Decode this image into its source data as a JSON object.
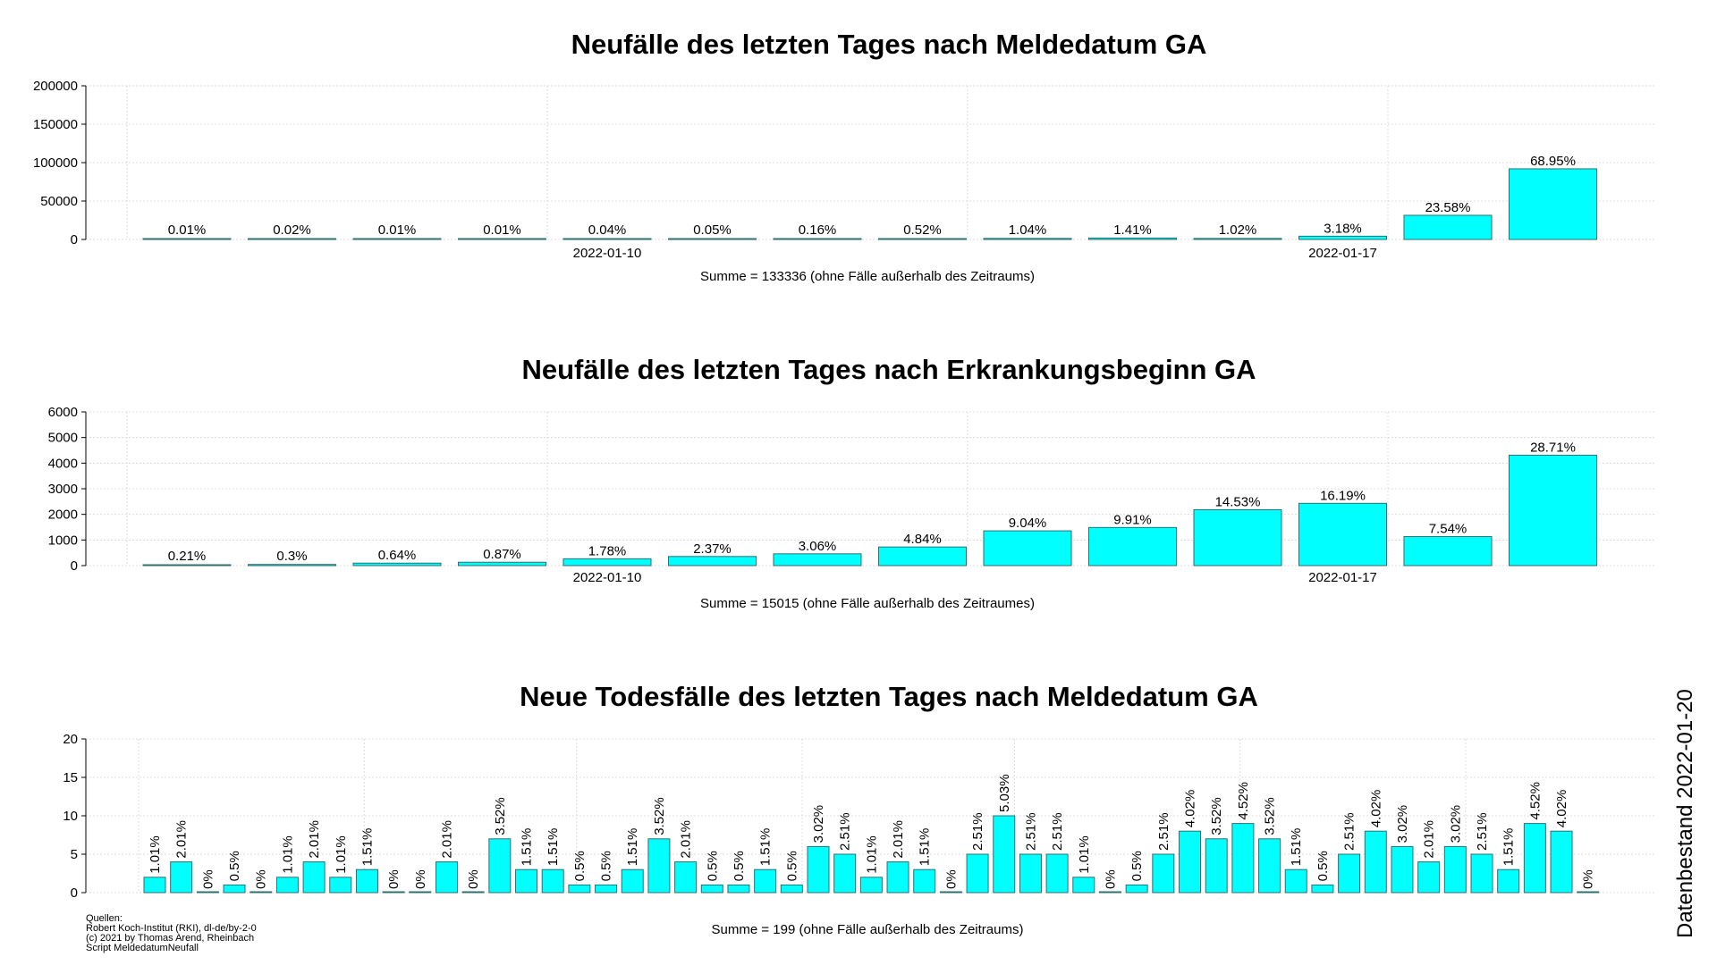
{
  "page": {
    "background": "#ffffff",
    "datenbestand": "Datenbestand 2022-01-20"
  },
  "sources": [
    "Quellen:",
    "Robert Koch-Institut (RKI), dl-de/by-2-0",
    "(c) 2021 by Thomas Arend, Rheinbach",
    "Script MeldedatumNeufall"
  ],
  "colors": {
    "bar_fill": "#00ffff",
    "bar_stroke": "#2f6f6f",
    "grid": "#dcdcdc",
    "axis": "#000000"
  },
  "chart_data": [
    {
      "type": "bar",
      "title": "Neufälle des letzten Tages nach Meldedatum GA",
      "ylim": [
        0,
        200000
      ],
      "yticks": [
        0,
        50000,
        100000,
        150000,
        200000
      ],
      "ytick_labels": [
        "0",
        "50000",
        "100000",
        "150000",
        "200000"
      ],
      "xlabel": "Summe = 133336 (ohne Fälle außerhalb des Zeitraums)",
      "x_ticks": [
        {
          "index": 4,
          "label": "2022-01-10"
        },
        {
          "index": 11,
          "label": "2022-01-17"
        }
      ],
      "label_rotation": 0,
      "values": [
        13,
        27,
        13,
        13,
        53,
        67,
        213,
        693,
        1387,
        1880,
        1360,
        4240,
        31440,
        91937
      ],
      "labels": [
        "0.01%",
        "0.02%",
        "0.01%",
        "0.01%",
        "0.04%",
        "0.05%",
        "0.16%",
        "0.52%",
        "1.04%",
        "1.41%",
        "1.02%",
        "3.18%",
        "23.58%",
        "68.95%"
      ]
    },
    {
      "type": "bar",
      "title": "Neufälle des letzten Tages nach Erkrankungsbeginn GA",
      "ylim": [
        0,
        6000
      ],
      "yticks": [
        0,
        1000,
        2000,
        3000,
        4000,
        5000,
        6000
      ],
      "ytick_labels": [
        "0",
        "1000",
        "2000",
        "3000",
        "4000",
        "5000",
        "6000"
      ],
      "xlabel": "Summe = 15015 (ohne Fälle außerhalb des Zeitraumes)",
      "x_ticks": [
        {
          "index": 4,
          "label": "2022-01-10"
        },
        {
          "index": 11,
          "label": "2022-01-17"
        }
      ],
      "label_rotation": 0,
      "values": [
        32,
        45,
        96,
        131,
        267,
        356,
        459,
        727,
        1357,
        1488,
        2182,
        2431,
        1132,
        4311
      ],
      "labels": [
        "0.21%",
        "0.3%",
        "0.64%",
        "0.87%",
        "1.78%",
        "2.37%",
        "3.06%",
        "4.84%",
        "9.04%",
        "9.91%",
        "14.53%",
        "16.19%",
        "7.54%",
        "28.71%"
      ]
    },
    {
      "type": "bar",
      "title": "Neue Todesfälle des letzten Tages nach Meldedatum GA",
      "ylim": [
        0,
        20
      ],
      "yticks": [
        0,
        5,
        10,
        15,
        20
      ],
      "ytick_labels": [
        "0",
        "5",
        "10",
        "15",
        "20"
      ],
      "xlabel": "Summe = 199 (ohne Fälle außerhalb des Zeitraums)",
      "x_ticks": [],
      "label_rotation": -90,
      "values": [
        2,
        4,
        0,
        1,
        0,
        2,
        4,
        2,
        3,
        0,
        0,
        4,
        0,
        7,
        3,
        3,
        1,
        1,
        3,
        7,
        4,
        1,
        1,
        3,
        1,
        6,
        5,
        2,
        4,
        3,
        0,
        5,
        10,
        5,
        5,
        2,
        0,
        1,
        5,
        8,
        7,
        9,
        7,
        3,
        1,
        5,
        8,
        6,
        4,
        6,
        5,
        3,
        9,
        8,
        0
      ],
      "labels": [
        "1.01%",
        "2.01%",
        "0%",
        "0.5%",
        "0%",
        "1.01%",
        "2.01%",
        "1.01%",
        "1.51%",
        "0%",
        "0%",
        "2.01%",
        "0%",
        "3.52%",
        "1.51%",
        "1.51%",
        "0.5%",
        "0.5%",
        "1.51%",
        "3.52%",
        "2.01%",
        "0.5%",
        "0.5%",
        "1.51%",
        "0.5%",
        "3.02%",
        "2.51%",
        "1.01%",
        "2.01%",
        "1.51%",
        "0%",
        "2.51%",
        "5.03%",
        "2.51%",
        "2.51%",
        "1.01%",
        "0%",
        "0.5%",
        "2.51%",
        "4.02%",
        "3.52%",
        "4.52%",
        "3.52%",
        "1.51%",
        "0.5%",
        "2.51%",
        "4.02%",
        "3.02%",
        "2.01%",
        "3.02%",
        "2.51%",
        "1.51%",
        "4.52%",
        "4.02%",
        "0%"
      ]
    }
  ]
}
